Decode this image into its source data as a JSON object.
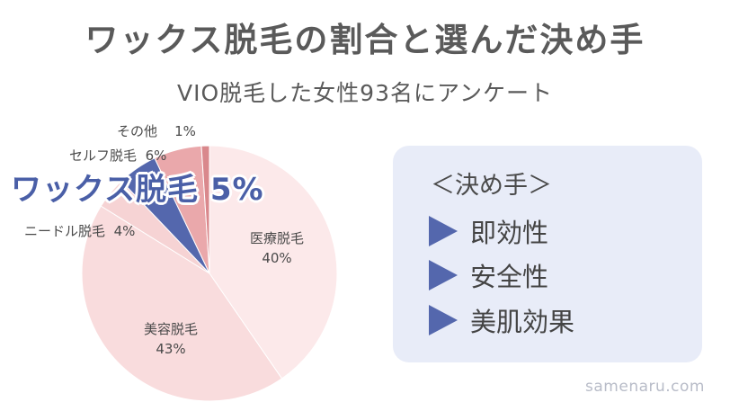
{
  "title": "ワックス脱毛の割合と選んだ決め手",
  "subtitle": "VIO脱毛した女性93名にアンケート",
  "chart_data": {
    "type": "pie",
    "start": "top",
    "direction": "clockwise",
    "slices": [
      {
        "name": "医療脱毛",
        "value": 40,
        "label": "40%",
        "color": "#fce9ea"
      },
      {
        "name": "美容脱毛",
        "value": 43,
        "label": "43%",
        "color": "#f9dcdd"
      },
      {
        "name": "ニードル脱毛",
        "value": 4,
        "label": "4%",
        "color": "#f6d3d4"
      },
      {
        "name": "ワックス脱毛",
        "value": 5,
        "label": "5%",
        "color": "#5467ad"
      },
      {
        "name": "セルフ脱毛",
        "value": 6,
        "label": "6%",
        "color": "#eaa8ab"
      },
      {
        "name": "その他",
        "value": 1,
        "label": "1%",
        "color": "#d9888c"
      }
    ]
  },
  "highlight": {
    "text": "ワックス脱毛 5%"
  },
  "panel": {
    "title": "＜決め手＞",
    "items": [
      "即効性",
      "安全性",
      "美肌効果"
    ],
    "bullet_color": "#5467ad"
  },
  "footer": "samenaru.com"
}
